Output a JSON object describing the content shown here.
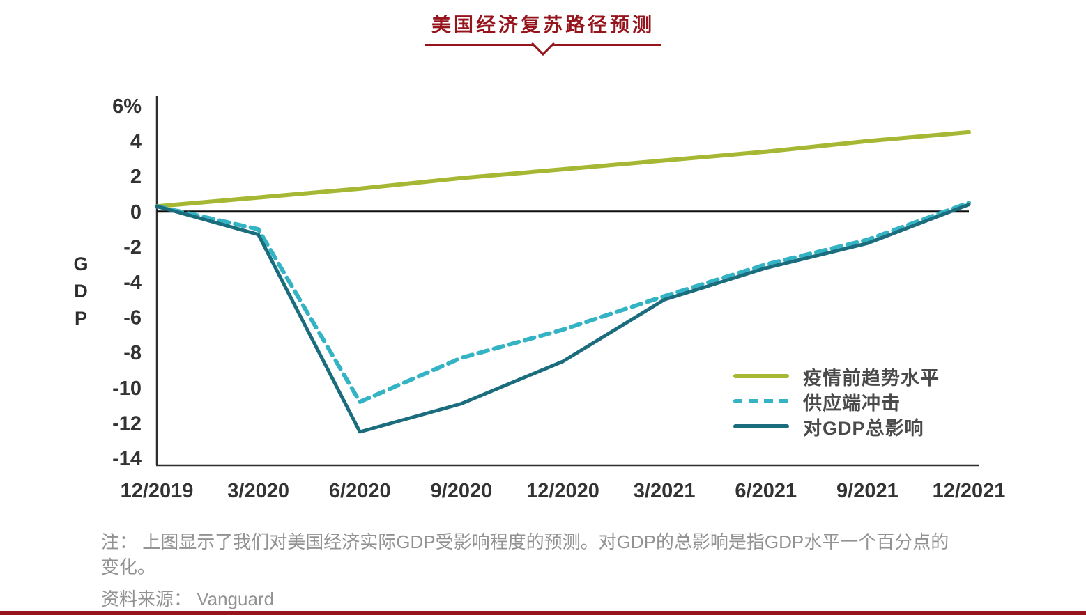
{
  "chart_data": {
    "type": "line",
    "title": "美国经济复苏路径预测",
    "ylabel": "GDP",
    "xlabel": "",
    "ylim": [
      -14,
      6
    ],
    "grid": false,
    "legend_position": "right-middle",
    "axis_color": "#2e2e2e",
    "zero_line": true,
    "zero_line_color": "#0d0d0d",
    "x": [
      "12/2019",
      "3/2020",
      "6/2020",
      "9/2020",
      "12/2020",
      "3/2021",
      "6/2021",
      "9/2021",
      "12/2021"
    ],
    "yticks": [
      {
        "label": "6%",
        "value": 6
      },
      {
        "label": "4",
        "value": 4
      },
      {
        "label": "2",
        "value": 2
      },
      {
        "label": "0",
        "value": 0
      },
      {
        "label": "-2",
        "value": -2
      },
      {
        "label": "-4",
        "value": -4
      },
      {
        "label": "-6",
        "value": -6
      },
      {
        "label": "-8",
        "value": -8
      },
      {
        "label": "-10",
        "value": -10
      },
      {
        "label": "-12",
        "value": -12
      },
      {
        "label": "-14",
        "value": -14
      }
    ],
    "series": [
      {
        "name": "疫情前趋势水平",
        "style": "solid",
        "color": "#a6b733",
        "width": 6,
        "values": [
          0.3,
          0.8,
          1.3,
          1.9,
          2.4,
          2.9,
          3.4,
          4.0,
          4.5
        ]
      },
      {
        "name": "供应端冲击",
        "style": "dashed",
        "color": "#34b3c5",
        "width": 6,
        "values": [
          0.3,
          -1.0,
          -10.8,
          -8.3,
          -6.7,
          -4.8,
          -3.0,
          -1.6,
          0.5
        ]
      },
      {
        "name": "对GDP总影响",
        "style": "solid",
        "color": "#1b6d7d",
        "width": 5,
        "values": [
          0.3,
          -1.3,
          -12.5,
          -10.9,
          -8.5,
          -5.0,
          -3.2,
          -1.8,
          0.4
        ]
      }
    ]
  },
  "notes": {
    "line1": "注： 上图显示了我们对美国经济实际GDP受影响程度的预测。对GDP的总影响是指GDP水平一个百分点的",
    "line2": "变化。",
    "source": "资料来源： Vanguard"
  },
  "theme": {
    "accent_red": "#96151d",
    "note_color": "#929292"
  }
}
